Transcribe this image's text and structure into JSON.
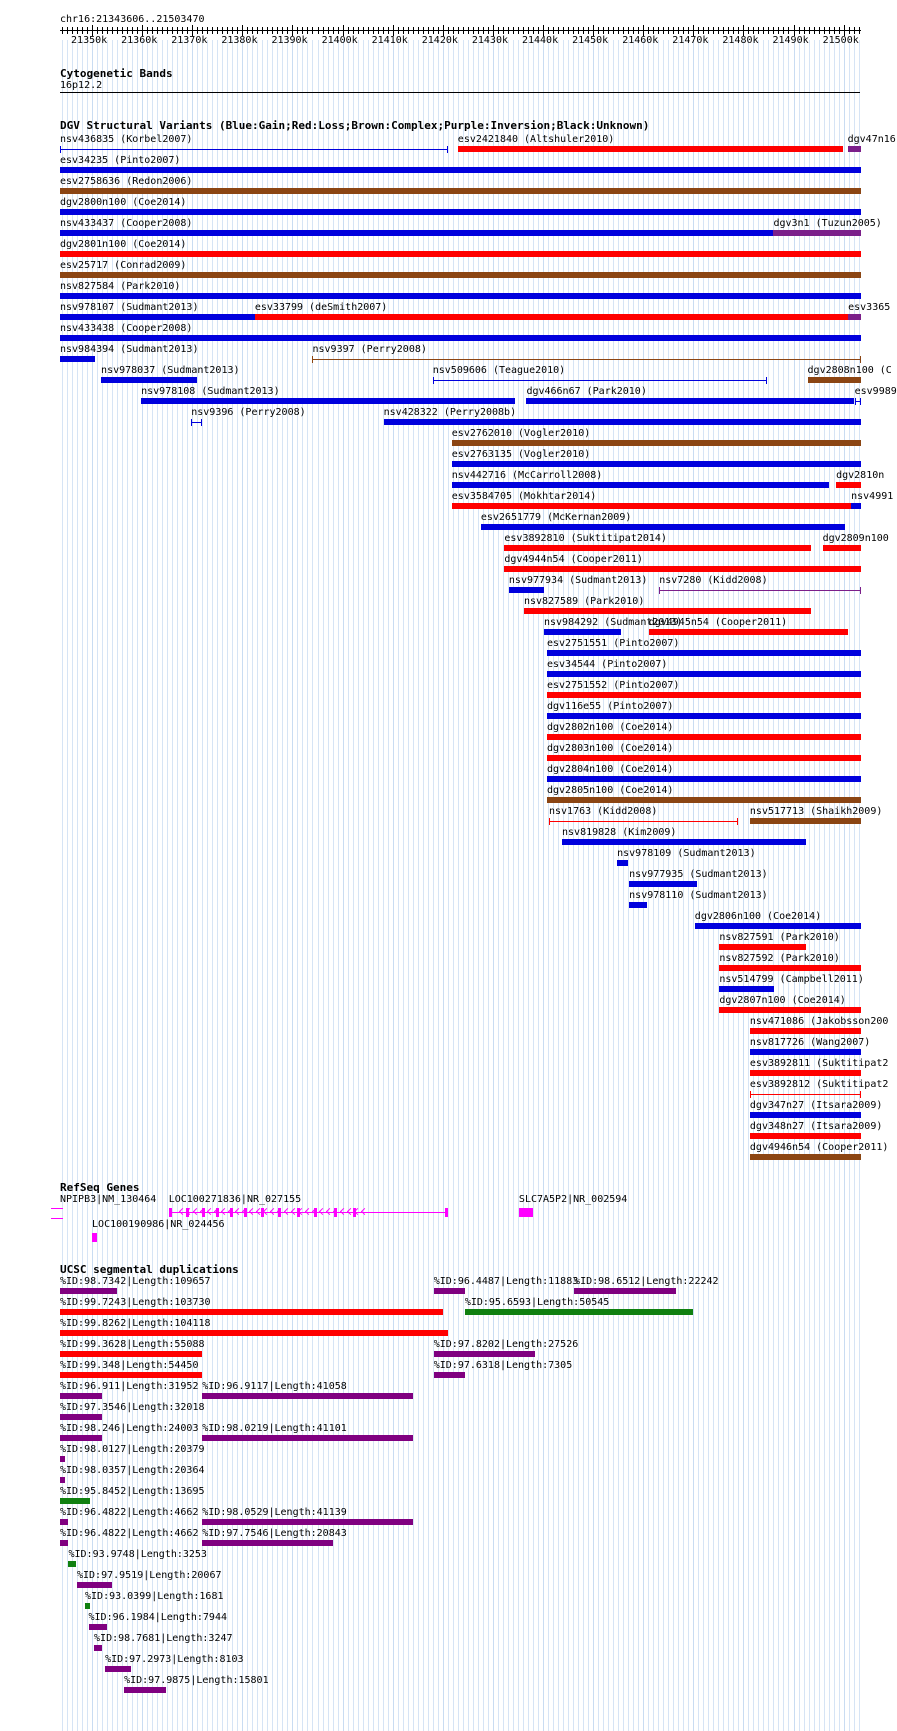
{
  "position": "chr16:21343606..21503470",
  "colors": {
    "gain": "#0000dd",
    "loss": "#ff0000",
    "complex": "#8b4513",
    "inversion": "#7b1f8a",
    "unknown": "#000000",
    "refseq": "#ff00ff",
    "segdup_green": "#108010",
    "segdup_purple": "#800080",
    "segdup_red": "#ff0000",
    "grid": "#c9dcf2"
  },
  "ruler": {
    "start": 21343606,
    "end": 21503470,
    "ticks": [
      "21350k",
      "21360k",
      "21370k",
      "21380k",
      "21390k",
      "21400k",
      "21410k",
      "21420k",
      "21430k",
      "21440k",
      "21450k",
      "21460k",
      "21470k",
      "21480k",
      "21490k",
      "21500k"
    ]
  },
  "bands": {
    "title": "Cytogenetic Bands",
    "band": "16p12.2"
  },
  "dgv": {
    "title": "DGV Structural Variants (Blue:Gain;Red:Loss;Brown:Complex;Purple:Inversion;Black:Unknown)",
    "features": [
      {
        "label": "nsv436835 (Korbel2007)",
        "row": 0,
        "s": 21343606,
        "e": 21421000,
        "type": "gain",
        "thin": true
      },
      {
        "label": "esv2421840 (Altshuler2010)",
        "row": 0,
        "s": 21423000,
        "e": 21499800,
        "type": "loss"
      },
      {
        "label": "dgv47n16",
        "row": 0,
        "s": 21500800,
        "e": 21503470,
        "type": "inversion"
      },
      {
        "label": "esv34235 (Pinto2007)",
        "row": 1,
        "s": 21343606,
        "e": 21503470,
        "type": "gain"
      },
      {
        "label": "esv2758636 (Redon2006)",
        "row": 2,
        "s": 21343606,
        "e": 21503470,
        "type": "complex"
      },
      {
        "label": "dgv2800n100 (Coe2014)",
        "row": 3,
        "s": 21343606,
        "e": 21503470,
        "type": "gain"
      },
      {
        "label": "nsv433437 (Cooper2008)",
        "row": 4,
        "s": 21343606,
        "e": 21486000,
        "type": "gain"
      },
      {
        "label": "dgv3n1 (Tuzun2005)",
        "row": 4,
        "s": 21486000,
        "e": 21503470,
        "type": "inversion"
      },
      {
        "label": "dgv2801n100 (Coe2014)",
        "row": 5,
        "s": 21343606,
        "e": 21503470,
        "type": "loss"
      },
      {
        "label": "esv25717 (Conrad2009)",
        "row": 6,
        "s": 21343606,
        "e": 21503470,
        "type": "complex"
      },
      {
        "label": "nsv827584 (Park2010)",
        "row": 7,
        "s": 21343606,
        "e": 21503470,
        "type": "gain"
      },
      {
        "label": "nsv978107 (Sudmant2013)",
        "row": 8,
        "s": 21343606,
        "e": 21382500,
        "type": "gain"
      },
      {
        "label": "esv33799 (deSmith2007)",
        "row": 8,
        "s": 21382500,
        "e": 21500900,
        "type": "loss"
      },
      {
        "label": "esv3365",
        "row": 8,
        "s": 21500900,
        "e": 21503470,
        "type": "inversion"
      },
      {
        "label": "nsv433438 (Cooper2008)",
        "row": 9,
        "s": 21343606,
        "e": 21503470,
        "type": "gain"
      },
      {
        "label": "nsv984394 (Sudmant2013)",
        "row": 10,
        "s": 21343606,
        "e": 21350600,
        "type": "gain"
      },
      {
        "label": "nsv9397 (Perry2008)",
        "row": 10,
        "s": 21394000,
        "e": 21503470,
        "type": "complex",
        "thin": true
      },
      {
        "label": "nsv978037 (Sudmant2013)",
        "row": 11,
        "s": 21351800,
        "e": 21371000,
        "type": "gain"
      },
      {
        "label": "nsv509606 (Teague2010)",
        "row": 11,
        "s": 21418000,
        "e": 21484800,
        "type": "gain",
        "thin": true
      },
      {
        "label": "dgv2808n100 (C",
        "row": 11,
        "s": 21492800,
        "e": 21503470,
        "type": "complex"
      },
      {
        "label": "nsv978108 (Sudmant2013)",
        "row": 12,
        "s": 21359800,
        "e": 21434500,
        "type": "gain"
      },
      {
        "label": "dgv466n67 (Park2010)",
        "row": 12,
        "s": 21436700,
        "e": 21502000,
        "type": "gain"
      },
      {
        "label": "esv9989",
        "row": 12,
        "s": 21502200,
        "e": 21503470,
        "type": "gain",
        "thin": true
      },
      {
        "label": "nsv9396 (Perry2008)",
        "row": 13,
        "s": 21369800,
        "e": 21372000,
        "type": "gain",
        "thin": true
      },
      {
        "label": "nsv428322 (Perry2008b)",
        "row": 13,
        "s": 21408200,
        "e": 21503470,
        "type": "gain"
      },
      {
        "label": "esv2762010 (Vogler2010)",
        "row": 14,
        "s": 21421800,
        "e": 21503470,
        "type": "complex"
      },
      {
        "label": "esv2763135 (Vogler2010)",
        "row": 15,
        "s": 21421800,
        "e": 21503470,
        "type": "gain"
      },
      {
        "label": "nsv442716 (McCarroll2008)",
        "row": 16,
        "s": 21421800,
        "e": 21497000,
        "type": "gain"
      },
      {
        "label": "dgv2810n",
        "row": 16,
        "s": 21498500,
        "e": 21503470,
        "type": "loss"
      },
      {
        "label": "esv3584705 (Mokhtar2014)",
        "row": 17,
        "s": 21421800,
        "e": 21501500,
        "type": "loss"
      },
      {
        "label": "nsv4991",
        "row": 17,
        "s": 21501500,
        "e": 21503470,
        "type": "gain"
      },
      {
        "label": "esv2651779 (McKernan2009)",
        "row": 18,
        "s": 21427600,
        "e": 21500200,
        "type": "gain"
      },
      {
        "label": "esv3892810 (Suktitipat2014)",
        "row": 19,
        "s": 21432300,
        "e": 21493400,
        "type": "loss"
      },
      {
        "label": "dgv2809n100",
        "row": 19,
        "s": 21495800,
        "e": 21503470,
        "type": "loss"
      },
      {
        "label": "dgv4944n54 (Cooper2011)",
        "row": 20,
        "s": 21432300,
        "e": 21503470,
        "type": "loss"
      },
      {
        "label": "nsv977934 (Sudmant2013)",
        "row": 21,
        "s": 21433200,
        "e": 21440300,
        "type": "gain"
      },
      {
        "label": "nsv7280 (Kidd2008)",
        "row": 21,
        "s": 21463200,
        "e": 21503470,
        "type": "inversion",
        "thin": true
      },
      {
        "label": "nsv827589 (Park2010)",
        "row": 22,
        "s": 21436200,
        "e": 21493400,
        "type": "loss"
      },
      {
        "label": "nsv984292 (Sudmant2013)",
        "row": 23,
        "s": 21440200,
        "e": 21455500,
        "type": "gain"
      },
      {
        "label": "dgv4945n54 (Cooper2011)",
        "row": 23,
        "s": 21461100,
        "e": 21500800,
        "type": "loss"
      },
      {
        "label": "esv2751551 (Pinto2007)",
        "row": 24,
        "s": 21440800,
        "e": 21503470,
        "type": "gain"
      },
      {
        "label": "esv34544 (Pinto2007)",
        "row": 25,
        "s": 21440800,
        "e": 21503470,
        "type": "gain"
      },
      {
        "label": "esv2751552 (Pinto2007)",
        "row": 26,
        "s": 21440800,
        "e": 21503470,
        "type": "loss"
      },
      {
        "label": "dgv116e55 (Pinto2007)",
        "row": 27,
        "s": 21440800,
        "e": 21503470,
        "type": "gain"
      },
      {
        "label": "dgv2802n100 (Coe2014)",
        "row": 28,
        "s": 21440800,
        "e": 21503470,
        "type": "loss"
      },
      {
        "label": "dgv2803n100 (Coe2014)",
        "row": 29,
        "s": 21440800,
        "e": 21503470,
        "type": "loss"
      },
      {
        "label": "dgv2804n100 (Coe2014)",
        "row": 30,
        "s": 21440800,
        "e": 21503470,
        "type": "gain"
      },
      {
        "label": "dgv2805n100 (Coe2014)",
        "row": 31,
        "s": 21440800,
        "e": 21503470,
        "type": "complex"
      },
      {
        "label": "nsv1763 (Kidd2008)",
        "row": 32,
        "s": 21441200,
        "e": 21479000,
        "type": "loss",
        "thin": true
      },
      {
        "label": "nsv517713 (Shaikh2009)",
        "row": 32,
        "s": 21481300,
        "e": 21503470,
        "type": "complex"
      },
      {
        "label": "nsv819828 (Kim2009)",
        "row": 33,
        "s": 21443800,
        "e": 21492400,
        "type": "gain"
      },
      {
        "label": "nsv978109 (Sudmant2013)",
        "row": 34,
        "s": 21454800,
        "e": 21457000,
        "type": "gain"
      },
      {
        "label": "nsv977935 (Sudmant2013)",
        "row": 35,
        "s": 21457200,
        "e": 21470700,
        "type": "gain"
      },
      {
        "label": "nsv978110 (Sudmant2013)",
        "row": 36,
        "s": 21457200,
        "e": 21460800,
        "type": "gain"
      },
      {
        "label": "dgv2806n100 (Coe2014)",
        "row": 37,
        "s": 21470300,
        "e": 21503470,
        "type": "gain"
      },
      {
        "label": "nsv827591 (Park2010)",
        "row": 38,
        "s": 21475200,
        "e": 21492400,
        "type": "loss"
      },
      {
        "label": "nsv827592 (Park2010)",
        "row": 39,
        "s": 21475200,
        "e": 21503470,
        "type": "loss"
      },
      {
        "label": "nsv514799 (Campbell2011)",
        "row": 40,
        "s": 21475200,
        "e": 21486100,
        "type": "gain"
      },
      {
        "label": "dgv2807n100 (Coe2014)",
        "row": 41,
        "s": 21475200,
        "e": 21503470,
        "type": "loss"
      },
      {
        "label": "nsv471086 (Jakobsson200",
        "row": 42,
        "s": 21481300,
        "e": 21503470,
        "type": "loss"
      },
      {
        "label": "nsv817726 (Wang2007)",
        "row": 43,
        "s": 21481300,
        "e": 21503470,
        "type": "gain"
      },
      {
        "label": "esv3892811 (Suktitipat2",
        "row": 44,
        "s": 21481300,
        "e": 21503470,
        "type": "loss"
      },
      {
        "label": "esv3892812 (Suktitipat2",
        "row": 45,
        "s": 21481300,
        "e": 21503470,
        "type": "loss",
        "thin": true
      },
      {
        "label": "dgv347n27 (Itsara2009)",
        "row": 46,
        "s": 21481300,
        "e": 21503470,
        "type": "gain"
      },
      {
        "label": "dgv348n27 (Itsara2009)",
        "row": 47,
        "s": 21481300,
        "e": 21503470,
        "type": "loss"
      },
      {
        "label": "dgv4946n54 (Cooper2011)",
        "row": 48,
        "s": 21481300,
        "e": 21503470,
        "type": "complex"
      }
    ]
  },
  "refseq": {
    "title": "RefSeq Genes",
    "genes": [
      {
        "label": "NPIPB3|NM_130464",
        "row": 0,
        "s": 21343000,
        "e": 21344300,
        "strand": "-"
      },
      {
        "label": "LOC100271836|NR_027155",
        "row": 0,
        "s": 21365300,
        "e": 21421000,
        "strand": "-"
      },
      {
        "label": "SLC7A5P2|NR_002594",
        "row": 0,
        "s": 21435200,
        "e": 21438000,
        "strand": "+"
      },
      {
        "label": "LOC100190986|NR_024456",
        "row": 1,
        "s": 21350000,
        "e": 21351000,
        "strand": "+"
      }
    ]
  },
  "segdups": {
    "title": "UCSC segmental duplications",
    "features": [
      {
        "label": "%ID:98.7342|Length:109657",
        "row": 0,
        "s": 21343606,
        "e": 21355000,
        "color": "purple"
      },
      {
        "label": "%ID:96.4487|Length:11883",
        "row": 0,
        "s": 21418200,
        "e": 21424500,
        "color": "purple"
      },
      {
        "label": "%ID:98.6512|Length:22242",
        "row": 0,
        "s": 21446200,
        "e": 21466500,
        "color": "purple"
      },
      {
        "label": "%ID:99.7243|Length:103730",
        "row": 1,
        "s": 21343606,
        "e": 21420000,
        "color": "red"
      },
      {
        "label": "%ID:95.6593|Length:50545",
        "row": 1,
        "s": 21424400,
        "e": 21470000,
        "color": "green"
      },
      {
        "label": "%ID:99.8262|Length:104118",
        "row": 2,
        "s": 21343606,
        "e": 21421000,
        "color": "red"
      },
      {
        "label": "%ID:99.3628|Length:55088",
        "row": 3,
        "s": 21343606,
        "e": 21372000,
        "color": "red"
      },
      {
        "label": "%ID:97.8202|Length:27526",
        "row": 3,
        "s": 21418200,
        "e": 21438500,
        "color": "purple"
      },
      {
        "label": "%ID:99.348|Length:54450",
        "row": 4,
        "s": 21343606,
        "e": 21372000,
        "color": "red"
      },
      {
        "label": "%ID:97.6318|Length:7305",
        "row": 4,
        "s": 21418200,
        "e": 21424500,
        "color": "purple"
      },
      {
        "label": "%ID:96.911|Length:31952",
        "row": 5,
        "s": 21343606,
        "e": 21352000,
        "color": "purple"
      },
      {
        "label": "%ID:96.9117|Length:41058",
        "row": 5,
        "s": 21372000,
        "e": 21414000,
        "color": "purple"
      },
      {
        "label": "%ID:97.3546|Length:32018",
        "row": 6,
        "s": 21343606,
        "e": 21352000,
        "color": "purple"
      },
      {
        "label": "%ID:98.246|Length:24003",
        "row": 7,
        "s": 21343606,
        "e": 21352000,
        "color": "purple"
      },
      {
        "label": "%ID:98.0219|Length:41101",
        "row": 7,
        "s": 21372000,
        "e": 21414000,
        "color": "purple"
      },
      {
        "label": "%ID:98.0127|Length:20379",
        "row": 8,
        "s": 21343606,
        "e": 21344600,
        "color": "purple"
      },
      {
        "label": "%ID:98.0357|Length:20364",
        "row": 9,
        "s": 21343606,
        "e": 21344600,
        "color": "purple"
      },
      {
        "label": "%ID:95.8452|Length:13695",
        "row": 10,
        "s": 21343606,
        "e": 21349500,
        "color": "green"
      },
      {
        "label": "%ID:96.4822|Length:4662",
        "row": 11,
        "s": 21343606,
        "e": 21345200,
        "color": "purple"
      },
      {
        "label": "%ID:98.0529|Length:41139",
        "row": 11,
        "s": 21372000,
        "e": 21414000,
        "color": "purple"
      },
      {
        "label": "%ID:96.4822|Length:4662",
        "row": 12,
        "s": 21343606,
        "e": 21345200,
        "color": "purple"
      },
      {
        "label": "%ID:97.7546|Length:20843",
        "row": 12,
        "s": 21372000,
        "e": 21398000,
        "color": "purple"
      },
      {
        "label": "%ID:93.9748|Length:3253",
        "row": 13,
        "s": 21345300,
        "e": 21346800,
        "color": "green"
      },
      {
        "label": "%ID:97.9519|Length:20067",
        "row": 14,
        "s": 21347000,
        "e": 21354000,
        "color": "purple"
      },
      {
        "label": "%ID:93.0399|Length:1681",
        "row": 15,
        "s": 21348600,
        "e": 21349500,
        "color": "green"
      },
      {
        "label": "%ID:96.1984|Length:7944",
        "row": 16,
        "s": 21349300,
        "e": 21353000,
        "color": "purple"
      },
      {
        "label": "%ID:98.7681|Length:3247",
        "row": 17,
        "s": 21350400,
        "e": 21352000,
        "color": "purple"
      },
      {
        "label": "%ID:97.2973|Length:8103",
        "row": 18,
        "s": 21352600,
        "e": 21357800,
        "color": "purple"
      },
      {
        "label": "%ID:97.9875|Length:15801",
        "row": 19,
        "s": 21356400,
        "e": 21364700,
        "color": "purple"
      }
    ]
  }
}
